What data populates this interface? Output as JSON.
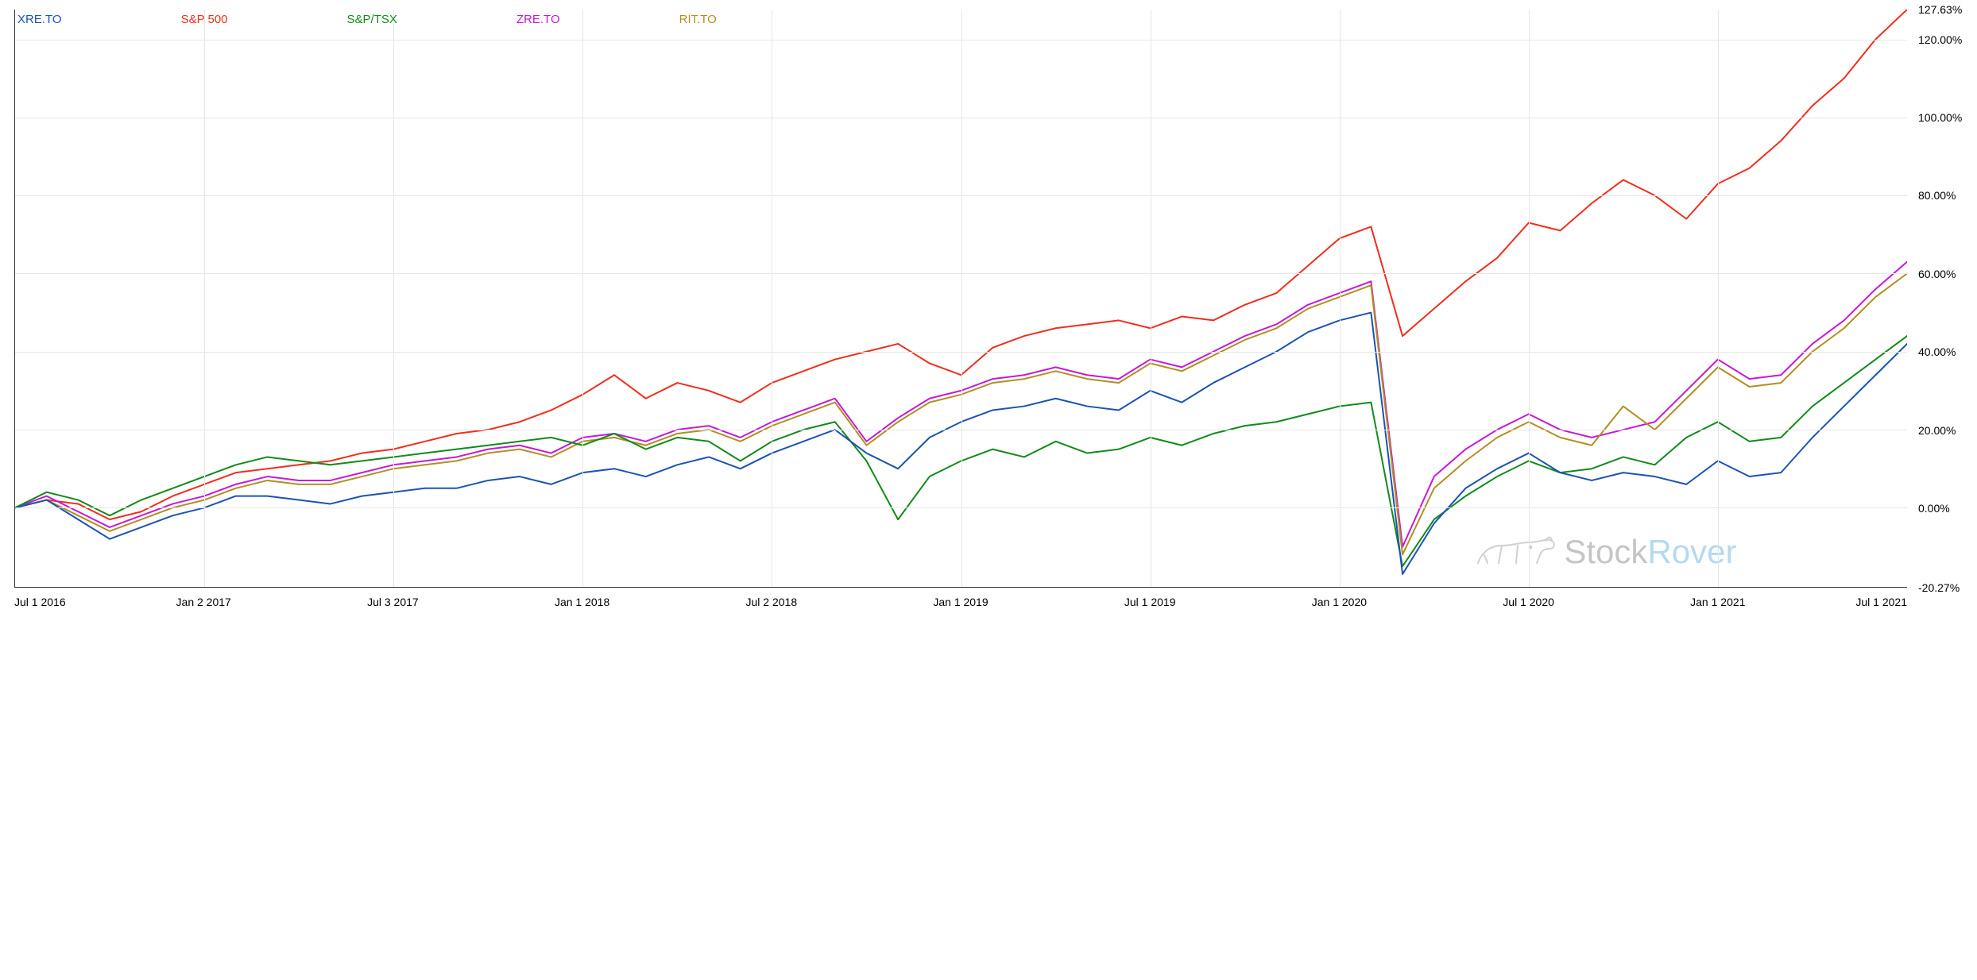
{
  "chart": {
    "type": "line",
    "background_color": "#ffffff",
    "grid_color": "#e6e6e6",
    "axis_color": "#333333",
    "label_color": "#000000",
    "label_fontsize": 14,
    "line_width": 2,
    "ylim": [
      -20.27,
      127.63
    ],
    "ytick_values": [
      -20.27,
      0,
      20,
      40,
      60,
      80,
      100,
      120,
      127.63
    ],
    "ytick_labels": [
      "-20.27%",
      "0.00%",
      "20.00%",
      "40.00%",
      "60.00%",
      "80.00%",
      "100.00%",
      "120.00%",
      "127.63%"
    ],
    "xlim": [
      0,
      60
    ],
    "xtick_positions": [
      0,
      6,
      12,
      18,
      24,
      30,
      36,
      42,
      48,
      54,
      60
    ],
    "xtick_labels": [
      "Jul 1 2016",
      "Jan 2 2017",
      "Jul 3 2017",
      "Jan 1 2018",
      "Jul 2 2018",
      "Jan 1 2019",
      "Jul 1 2019",
      "Jan 1 2020",
      "Jul 1 2020",
      "Jan 1 2021",
      "Jul 1 2021"
    ],
    "legend": {
      "position": "top",
      "items": [
        {
          "label": "XRE.TO",
          "color": "#1c53b3"
        },
        {
          "label": "S&P 500",
          "color": "#f02e1d"
        },
        {
          "label": "S&P/TSX",
          "color": "#128a1a"
        },
        {
          "label": "ZRE.TO",
          "color": "#c818d6"
        },
        {
          "label": "RIT.TO",
          "color": "#b09020"
        }
      ]
    },
    "watermark": {
      "text_a": "Stock",
      "text_b": "Rover",
      "color_a": "rgba(90,90,90,0.35)",
      "color_b": "rgba(90,170,220,0.45)",
      "dog_color": "rgba(120,120,120,0.32)",
      "position_pct_from_left": 77
    },
    "series": [
      {
        "name": "S&P 500",
        "color": "#f02e1d",
        "values": [
          0,
          2,
          1,
          -3,
          -1,
          3,
          6,
          9,
          10,
          11,
          12,
          14,
          15,
          17,
          19,
          20,
          22,
          25,
          29,
          34,
          28,
          32,
          30,
          27,
          32,
          35,
          38,
          40,
          42,
          37,
          34,
          41,
          44,
          46,
          47,
          48,
          46,
          49,
          48,
          52,
          55,
          62,
          69,
          72,
          44,
          51,
          58,
          64,
          73,
          71,
          78,
          84,
          80,
          74,
          83,
          87,
          94,
          103,
          110,
          120,
          127.63
        ]
      },
      {
        "name": "ZRE.TO",
        "color": "#c818d6",
        "values": [
          0,
          3,
          -1,
          -5,
          -2,
          1,
          3,
          6,
          8,
          7,
          7,
          9,
          11,
          12,
          13,
          15,
          16,
          14,
          18,
          19,
          17,
          20,
          21,
          18,
          22,
          25,
          28,
          17,
          23,
          28,
          30,
          33,
          34,
          36,
          34,
          33,
          38,
          36,
          40,
          44,
          47,
          52,
          55,
          58,
          -10,
          8,
          15,
          20,
          24,
          20,
          18,
          20,
          22,
          30,
          38,
          33,
          34,
          42,
          48,
          56,
          63
        ]
      },
      {
        "name": "RIT.TO",
        "color": "#b09020",
        "values": [
          0,
          2,
          -2,
          -6,
          -3,
          0,
          2,
          5,
          7,
          6,
          6,
          8,
          10,
          11,
          12,
          14,
          15,
          13,
          17,
          18,
          16,
          19,
          20,
          17,
          21,
          24,
          27,
          16,
          22,
          27,
          29,
          32,
          33,
          35,
          33,
          32,
          37,
          35,
          39,
          43,
          46,
          51,
          54,
          57,
          -12,
          5,
          12,
          18,
          22,
          18,
          16,
          26,
          20,
          28,
          36,
          31,
          32,
          40,
          46,
          54,
          60
        ]
      },
      {
        "name": "S&P/TSX",
        "color": "#128a1a",
        "values": [
          0,
          4,
          2,
          -2,
          2,
          5,
          8,
          11,
          13,
          12,
          11,
          12,
          13,
          14,
          15,
          16,
          17,
          18,
          16,
          19,
          15,
          18,
          17,
          12,
          17,
          20,
          22,
          12,
          -3,
          8,
          12,
          15,
          13,
          17,
          14,
          15,
          18,
          16,
          19,
          21,
          22,
          24,
          26,
          27,
          -15,
          -3,
          3,
          8,
          12,
          9,
          10,
          13,
          11,
          18,
          22,
          17,
          18,
          26,
          32,
          38,
          44
        ]
      },
      {
        "name": "XRE.TO",
        "color": "#1c53b3",
        "values": [
          0,
          2,
          -3,
          -8,
          -5,
          -2,
          0,
          3,
          3,
          2,
          1,
          3,
          4,
          5,
          5,
          7,
          8,
          6,
          9,
          10,
          8,
          11,
          13,
          10,
          14,
          17,
          20,
          14,
          10,
          18,
          22,
          25,
          26,
          28,
          26,
          25,
          30,
          27,
          32,
          36,
          40,
          45,
          48,
          50,
          -17,
          -4,
          5,
          10,
          14,
          9,
          7,
          9,
          8,
          6,
          12,
          8,
          9,
          18,
          26,
          34,
          42
        ]
      }
    ]
  }
}
